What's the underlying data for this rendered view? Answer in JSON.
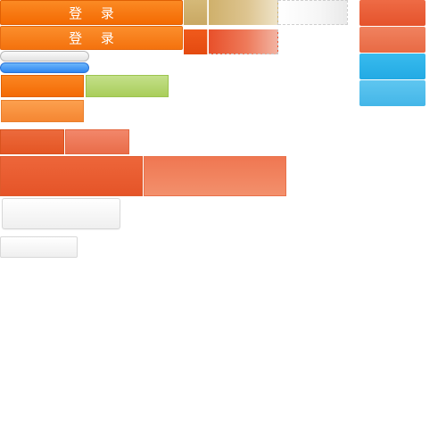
{
  "login_buttons": [
    {
      "label": "登 录"
    },
    {
      "label": "登 录"
    }
  ],
  "colors": {
    "orange": "#f46a02",
    "orange_light": "#f58632",
    "gold": "#c9a863",
    "red_orange": "#e5532c",
    "red_light": "#f3906c",
    "blue": "#22aae4",
    "blue_light": "#44b6e8",
    "pill_blue": "#2f86f0",
    "green": "#a9cd5a",
    "white_gray": "#efefef"
  }
}
